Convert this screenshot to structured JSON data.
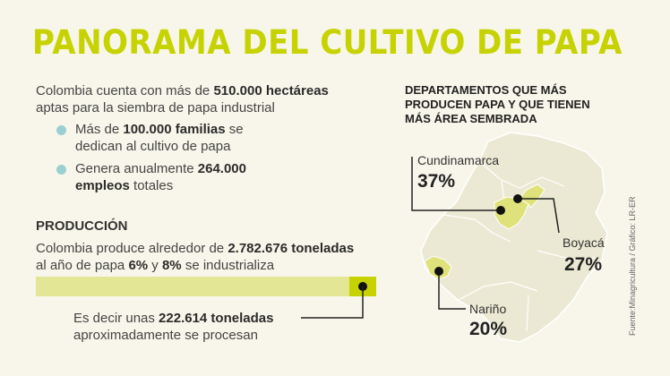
{
  "title": "PANORAMA DEL CULTIVO DE PAPA",
  "intro": {
    "line1_pre": "Colombia cuenta con más de ",
    "line1_bold": "510.000 hectáreas",
    "line2": "aptas para la siembra de papa industrial"
  },
  "bullets": [
    {
      "pre": "Más de ",
      "bold": "100.000 familias",
      "post": " se",
      "line2": "dedican al cultivo de papa"
    },
    {
      "pre": "Genera anualmente ",
      "bold": "264.000",
      "line2_bold": "empleos",
      "line2_post": " totales"
    }
  ],
  "production": {
    "heading": "PRODUCCIÓN",
    "line1_pre": "Colombia produce alrededor de ",
    "line1_bold": "2.782.676 toneladas",
    "line2_pre": "al año de papa ",
    "pct1": "6%",
    "mid": " y ",
    "pct2": "8%",
    "line2_post": " se industrializa",
    "bar_industrialized_fraction": 0.08,
    "note_pre": "Es decir unas ",
    "note_bold": "222.614 toneladas",
    "note_line2": "aproximadamente se procesan"
  },
  "departments": {
    "heading": [
      "DEPARTAMENTOS QUE MÁS",
      "PRODUCEN PAPA Y QUE TIENEN",
      "MÁS ÁREA SEMBRADA"
    ],
    "items": [
      {
        "name": "Cundinamarca",
        "pct": "37%"
      },
      {
        "name": "Boyacá",
        "pct": "27%"
      },
      {
        "name": "Nariño",
        "pct": "20%"
      }
    ]
  },
  "source": "Fuente:Minagricultura / Gráfico: LR-ER",
  "colors": {
    "accent": "#c7d300",
    "bar_light": "#e3e695",
    "bullet": "#9ccfd0",
    "map": "#ebe9d3",
    "map_highlight": "#dfe27a"
  }
}
